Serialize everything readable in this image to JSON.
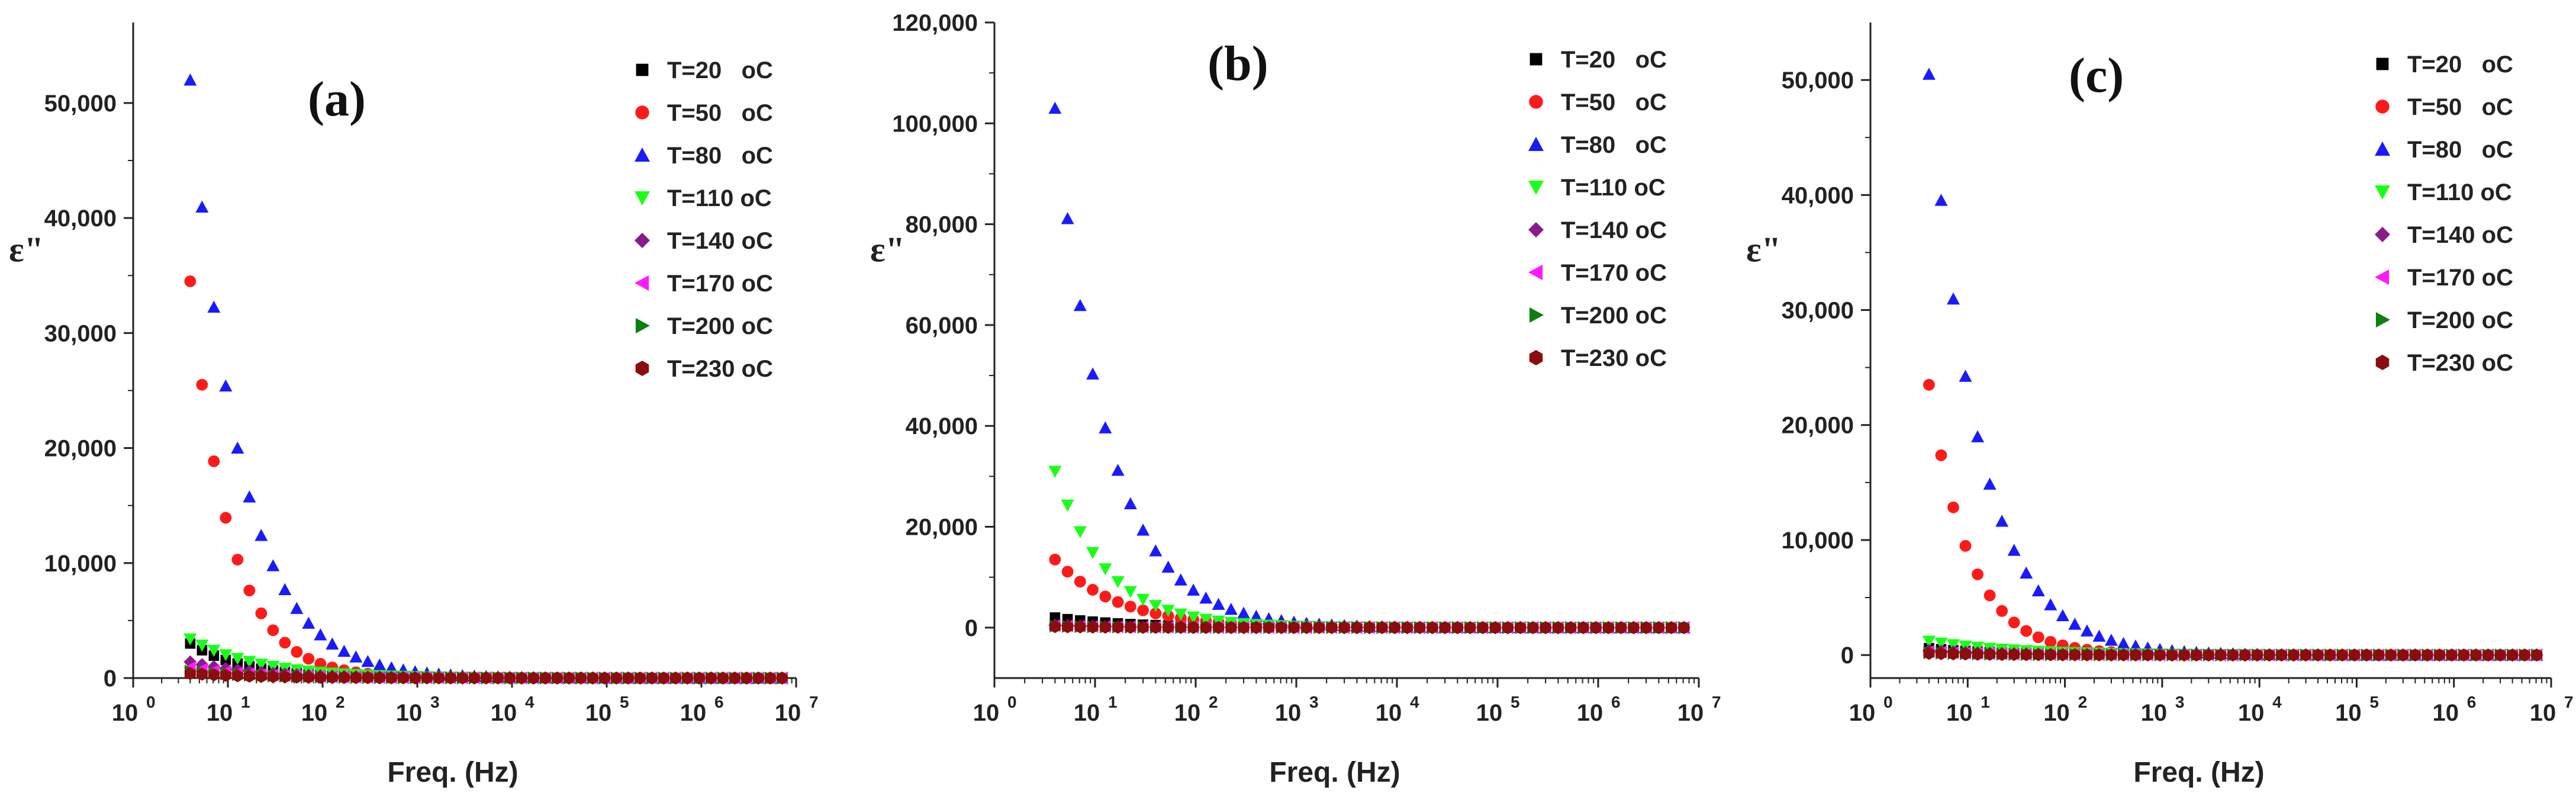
{
  "chart_data": [
    {
      "type": "scatter",
      "panel_label": "(a)",
      "xlabel": "Freq. (Hz)",
      "ylabel": "ε\"",
      "xscale": "log",
      "xlim": [
        1,
        10000000
      ],
      "ylim": [
        0,
        57000
      ],
      "x_ticks": [
        1,
        10,
        100,
        1000,
        10000,
        100000,
        1000000,
        10000000
      ],
      "x_tick_labels": [
        {
          "base": "10",
          "exp": "0"
        },
        {
          "base": "10",
          "exp": "1"
        },
        {
          "base": "10",
          "exp": "2"
        },
        {
          "base": "10",
          "exp": "3"
        },
        {
          "base": "10",
          "exp": "4"
        },
        {
          "base": "10",
          "exp": "5"
        },
        {
          "base": "10",
          "exp": "6"
        },
        {
          "base": "10",
          "exp": "7"
        }
      ],
      "y_ticks": [
        0,
        10000,
        20000,
        30000,
        40000,
        50000
      ],
      "y_tick_labels": [
        "0",
        "10,000",
        "20,000",
        "30,000",
        "40,000",
        "50,000"
      ],
      "legend_position": "top-right",
      "series": [
        {
          "name": "T=20   oC",
          "marker": "square",
          "color": "#000000",
          "a": 3000,
          "n": 0.75
        },
        {
          "name": "T=50   oC",
          "marker": "circle",
          "color": "#ff1a1a",
          "a": 34500,
          "n": 1.05
        },
        {
          "name": "T=80   oC",
          "marker": "triangle-up",
          "color": "#1a1aff",
          "a": 52000,
          "n": 0.83
        },
        {
          "name": "T=110 oC",
          "marker": "triangle-down",
          "color": "#1aff1a",
          "a": 3400,
          "n": 0.6
        },
        {
          "name": "T=140 oC",
          "marker": "diamond",
          "color": "#8b1a8b",
          "a": 1400,
          "n": 0.6
        },
        {
          "name": "T=170 oC",
          "marker": "triangle-left",
          "color": "#ff1aff",
          "a": 900,
          "n": 0.6
        },
        {
          "name": "T=200 oC",
          "marker": "triangle-right",
          "color": "#0d800d",
          "a": 600,
          "n": 0.6
        },
        {
          "name": "T=230 oC",
          "marker": "hexagon",
          "color": "#8b0d0d",
          "a": 400,
          "n": 0.6
        }
      ]
    },
    {
      "type": "scatter",
      "panel_label": "(b)",
      "xlabel": "Freq. (Hz)",
      "ylabel": "ε\"",
      "xscale": "log",
      "xlim": [
        1,
        10000000
      ],
      "ylim": [
        -10000,
        120000
      ],
      "x_ticks": [
        1,
        10,
        100,
        1000,
        10000,
        100000,
        1000000,
        10000000
      ],
      "x_tick_labels": [
        {
          "base": "10",
          "exp": "0"
        },
        {
          "base": "10",
          "exp": "1"
        },
        {
          "base": "10",
          "exp": "2"
        },
        {
          "base": "10",
          "exp": "3"
        },
        {
          "base": "10",
          "exp": "4"
        },
        {
          "base": "10",
          "exp": "5"
        },
        {
          "base": "10",
          "exp": "6"
        },
        {
          "base": "10",
          "exp": "7"
        }
      ],
      "y_ticks": [
        0,
        20000,
        40000,
        60000,
        80000,
        100000,
        120000
      ],
      "y_tick_labels": [
        "0",
        "20,000",
        "40,000",
        "60,000",
        "80,000",
        "100,000",
        "120,000"
      ],
      "legend_position": "top-right",
      "series": [
        {
          "name": "T=20   oC",
          "marker": "square",
          "color": "#000000",
          "a": 2000,
          "n": 0.6
        },
        {
          "name": "T=50   oC",
          "marker": "circle",
          "color": "#ff1a1a",
          "a": 13500,
          "n": 0.68
        },
        {
          "name": "T=80   oC",
          "marker": "triangle-up",
          "color": "#1a1aff",
          "a": 103000,
          "n": 0.83
        },
        {
          "name": "T=110 oC",
          "marker": "triangle-down",
          "color": "#1aff1a",
          "a": 31000,
          "n": 0.85
        },
        {
          "name": "T=140 oC",
          "marker": "diamond",
          "color": "#8b1a8b",
          "a": 500,
          "n": 0.6
        },
        {
          "name": "T=170 oC",
          "marker": "triangle-left",
          "color": "#ff1aff",
          "a": 400,
          "n": 0.6
        },
        {
          "name": "T=200 oC",
          "marker": "triangle-right",
          "color": "#0d800d",
          "a": 300,
          "n": 0.6
        },
        {
          "name": "T=230 oC",
          "marker": "hexagon",
          "color": "#8b0d0d",
          "a": 200,
          "n": 0.6
        }
      ]
    },
    {
      "type": "scatter",
      "panel_label": "(c)",
      "xlabel": "Freq. (Hz)",
      "ylabel": "ε\"",
      "xscale": "log",
      "xlim": [
        1,
        10000000
      ],
      "ylim": [
        -2000,
        55000
      ],
      "x_ticks": [
        1,
        10,
        100,
        1000,
        10000,
        100000,
        1000000,
        10000000
      ],
      "x_tick_labels": [
        {
          "base": "10",
          "exp": "0"
        },
        {
          "base": "10",
          "exp": "1"
        },
        {
          "base": "10",
          "exp": "2"
        },
        {
          "base": "10",
          "exp": "3"
        },
        {
          "base": "10",
          "exp": "4"
        },
        {
          "base": "10",
          "exp": "5"
        },
        {
          "base": "10",
          "exp": "6"
        },
        {
          "base": "10",
          "exp": "7"
        }
      ],
      "y_ticks": [
        0,
        10000,
        20000,
        30000,
        40000,
        50000
      ],
      "y_tick_labels": [
        "0",
        "10,000",
        "20,000",
        "30,000",
        "40,000",
        "50,000"
      ],
      "legend_position": "top-right",
      "series": [
        {
          "name": "T=20   oC",
          "marker": "square",
          "color": "#000000",
          "a": 600,
          "n": 0.6
        },
        {
          "name": "T=50   oC",
          "marker": "circle",
          "color": "#ff1a1a",
          "a": 23500,
          "n": 1.05
        },
        {
          "name": "T=80   oC",
          "marker": "triangle-up",
          "color": "#1a1aff",
          "a": 50500,
          "n": 0.85
        },
        {
          "name": "T=110 oC",
          "marker": "triangle-down",
          "color": "#1aff1a",
          "a": 1200,
          "n": 0.5
        },
        {
          "name": "T=140 oC",
          "marker": "diamond",
          "color": "#8b1a8b",
          "a": 400,
          "n": 0.6
        },
        {
          "name": "T=170 oC",
          "marker": "triangle-left",
          "color": "#ff1aff",
          "a": 300,
          "n": 0.6
        },
        {
          "name": "T=200 oC",
          "marker": "triangle-right",
          "color": "#0d800d",
          "a": 200,
          "n": 0.6
        },
        {
          "name": "T=230 oC",
          "marker": "hexagon",
          "color": "#8b0d0d",
          "a": 150,
          "n": 0.6
        }
      ],
      "sampling": {
        "f_start": 4,
        "points_per_decade": 8,
        "f_end": 8000000,
        "model": "a * (f/4)^(-n)"
      }
    }
  ]
}
